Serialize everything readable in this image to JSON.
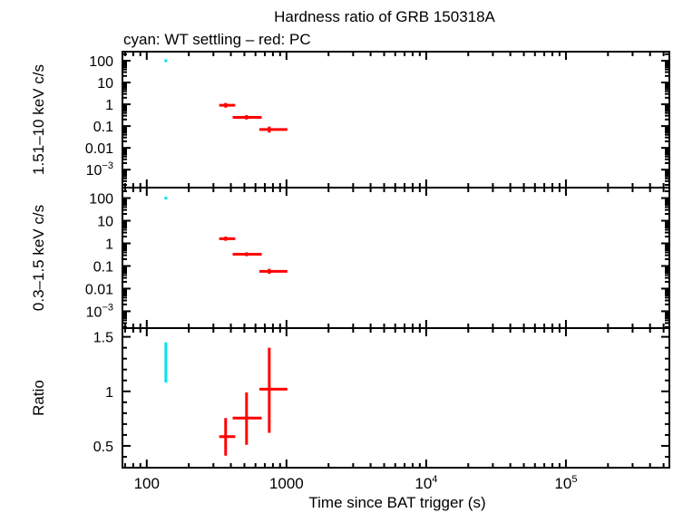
{
  "chart_data": {
    "type": "scatter",
    "title": "Hardness ratio of GRB 150318A",
    "subtitle": "cyan: WT settling – red: PC",
    "xlabel": "Time since BAT trigger (s)",
    "xscale": "log",
    "xlim": [
      67,
      550000
    ],
    "x_ticks": [
      {
        "value": 100,
        "label": "100"
      },
      {
        "value": 1000,
        "label": "1000"
      },
      {
        "value": 10000,
        "label": "10",
        "exp": "4"
      },
      {
        "value": 100000,
        "label": "10",
        "exp": "5"
      }
    ],
    "colors": {
      "wt": "#00e5ee",
      "pc": "#ff0000"
    },
    "panels": [
      {
        "ylabel": "1.51–10 keV c/s",
        "yscale": "log",
        "ylim": [
          0.00015,
          260
        ],
        "y_ticks": [
          {
            "value": 100,
            "label": "100"
          },
          {
            "value": 10,
            "label": "10"
          },
          {
            "value": 1,
            "label": "1"
          },
          {
            "value": 0.1,
            "label": "0.1"
          },
          {
            "value": 0.01,
            "label": "0.01"
          },
          {
            "value": 0.001,
            "label": "10",
            "exp": "−3"
          }
        ],
        "series": [
          {
            "mode": "WT",
            "points": [
              {
                "x": 137,
                "xlo": 134,
                "xhi": 140,
                "y": 100,
                "ylo": 95,
                "yhi": 105
              }
            ]
          },
          {
            "mode": "PC",
            "points": [
              {
                "x": 367,
                "xlo": 330,
                "xhi": 430,
                "y": 0.9,
                "ylo": 0.7,
                "yhi": 1.15
              },
              {
                "x": 518,
                "xlo": 412,
                "xhi": 665,
                "y": 0.25,
                "ylo": 0.2,
                "yhi": 0.32
              },
              {
                "x": 753,
                "xlo": 640,
                "xhi": 1015,
                "y": 0.07,
                "ylo": 0.05,
                "yhi": 0.095
              }
            ]
          }
        ]
      },
      {
        "ylabel": "0.3–1.5 keV c/s",
        "yscale": "log",
        "ylim": [
          0.00018,
          290
        ],
        "y_ticks": [
          {
            "value": 100,
            "label": "100"
          },
          {
            "value": 10,
            "label": "10"
          },
          {
            "value": 1,
            "label": "1"
          },
          {
            "value": 0.1,
            "label": "0.1"
          },
          {
            "value": 0.01,
            "label": "0.01"
          },
          {
            "value": 0.001,
            "label": "10",
            "exp": "−3"
          }
        ],
        "series": [
          {
            "mode": "WT",
            "points": [
              {
                "x": 137,
                "xlo": 134,
                "xhi": 140,
                "y": 100,
                "ylo": 95,
                "yhi": 105
              }
            ]
          },
          {
            "mode": "PC",
            "points": [
              {
                "x": 367,
                "xlo": 330,
                "xhi": 430,
                "y": 1.6,
                "ylo": 1.3,
                "yhi": 2.0
              },
              {
                "x": 518,
                "xlo": 412,
                "xhi": 665,
                "y": 0.33,
                "ylo": 0.27,
                "yhi": 0.4
              },
              {
                "x": 753,
                "xlo": 640,
                "xhi": 1015,
                "y": 0.058,
                "ylo": 0.045,
                "yhi": 0.075
              }
            ]
          }
        ]
      },
      {
        "ylabel": "Ratio",
        "yscale": "linear",
        "ylim": [
          0.3,
          1.58
        ],
        "y_ticks": [
          {
            "value": 1.5,
            "label": "1.5"
          },
          {
            "value": 1,
            "label": "1"
          },
          {
            "value": 0.5,
            "label": "0.5"
          }
        ],
        "series": [
          {
            "mode": "WT",
            "points": [
              {
                "x": 137,
                "xlo": 135,
                "xhi": 139,
                "y": 1.25,
                "ylo": 1.08,
                "yhi": 1.45
              }
            ]
          },
          {
            "mode": "PC",
            "points": [
              {
                "x": 367,
                "xlo": 330,
                "xhi": 430,
                "y": 0.585,
                "ylo": 0.41,
                "yhi": 0.755
              },
              {
                "x": 518,
                "xlo": 412,
                "xhi": 665,
                "y": 0.755,
                "ylo": 0.51,
                "yhi": 0.99
              },
              {
                "x": 753,
                "xlo": 640,
                "xhi": 1015,
                "y": 1.02,
                "ylo": 0.62,
                "yhi": 1.4
              }
            ]
          }
        ]
      }
    ]
  }
}
